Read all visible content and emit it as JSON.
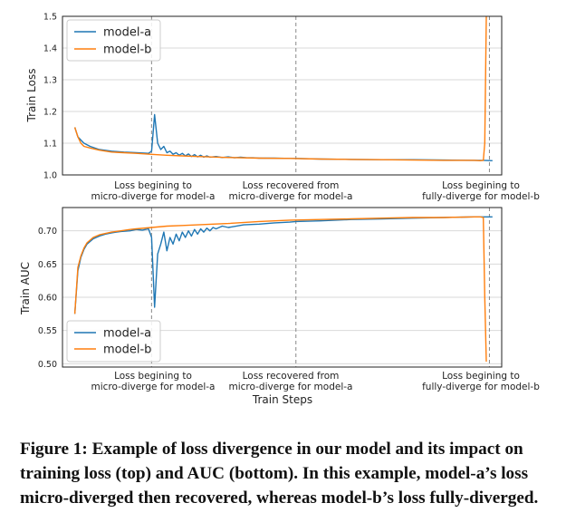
{
  "colors": {
    "model_a": "#1f77b4",
    "model_b": "#ff7f0e",
    "vline": "#888888",
    "grid": "#d9d9d9"
  },
  "annotations": [
    {
      "x": 25000,
      "lines": [
        "Loss begining to",
        "micro-diverge for model-a"
      ]
    },
    {
      "x": 72000,
      "lines": [
        "Loss recovered from",
        "micro-diverge for model-a"
      ]
    },
    {
      "x": 135000,
      "lines": [
        "Loss begining to",
        "fully-diverge for model-b"
      ]
    }
  ],
  "chart_data": [
    {
      "type": "line",
      "ylabel": "Train Loss",
      "xlabel": "",
      "ylim": [
        1.0,
        1.5
      ],
      "xlim": [
        -4000,
        139000
      ],
      "yticks": [
        "1.0",
        "1.1",
        "1.2",
        "1.3",
        "1.4",
        "1.5"
      ],
      "grid": true,
      "legend": "top-left",
      "series": [
        {
          "name": "model-a",
          "x": [
            0,
            1000,
            2000,
            3000,
            5000,
            8000,
            12000,
            16000,
            20000,
            24000,
            25000,
            26000,
            27000,
            28000,
            29000,
            30000,
            31000,
            32000,
            33000,
            34000,
            35000,
            36000,
            37000,
            38000,
            39000,
            40000,
            41000,
            42000,
            43000,
            44000,
            46000,
            48000,
            50000,
            52000,
            54000,
            56000,
            58000,
            60000,
            65000,
            70000,
            72000,
            80000,
            90000,
            100000,
            110000,
            120000,
            130000,
            133000,
            136000
          ],
          "y": [
            1.15,
            1.12,
            1.11,
            1.1,
            1.09,
            1.08,
            1.075,
            1.072,
            1.07,
            1.068,
            1.075,
            1.19,
            1.1,
            1.08,
            1.09,
            1.07,
            1.075,
            1.065,
            1.07,
            1.062,
            1.068,
            1.06,
            1.066,
            1.058,
            1.064,
            1.057,
            1.062,
            1.056,
            1.06,
            1.056,
            1.058,
            1.055,
            1.057,
            1.054,
            1.056,
            1.054,
            1.054,
            1.053,
            1.053,
            1.052,
            1.052,
            1.05,
            1.049,
            1.048,
            1.048,
            1.047,
            1.046,
            1.046,
            1.045
          ]
        },
        {
          "name": "model-b",
          "x": [
            0,
            1000,
            2000,
            3000,
            5000,
            8000,
            12000,
            16000,
            20000,
            25000,
            30000,
            35000,
            40000,
            50000,
            60000,
            70000,
            80000,
            90000,
            100000,
            110000,
            120000,
            130000,
            132000,
            133000,
            133500,
            134000
          ],
          "y": [
            1.15,
            1.12,
            1.1,
            1.09,
            1.085,
            1.078,
            1.072,
            1.07,
            1.068,
            1.065,
            1.062,
            1.06,
            1.058,
            1.055,
            1.053,
            1.052,
            1.05,
            1.049,
            1.048,
            1.047,
            1.046,
            1.046,
            1.045,
            1.046,
            1.1,
            1.5
          ]
        }
      ]
    },
    {
      "type": "line",
      "ylabel": "Train AUC",
      "xlabel": "Train Steps",
      "ylim": [
        0.495,
        0.735
      ],
      "xlim": [
        -4000,
        139000
      ],
      "yticks": [
        "0.50",
        "0.55",
        "0.60",
        "0.65",
        "0.70"
      ],
      "grid": true,
      "legend": "bottom-left",
      "series": [
        {
          "name": "model-a",
          "x": [
            0,
            1000,
            2000,
            3000,
            4000,
            6000,
            8000,
            10000,
            12000,
            15000,
            18000,
            20000,
            22000,
            24000,
            25000,
            26000,
            27000,
            28000,
            29000,
            30000,
            31000,
            32000,
            33000,
            34000,
            35000,
            36000,
            37000,
            38000,
            39000,
            40000,
            41000,
            42000,
            43000,
            44000,
            45000,
            46000,
            48000,
            50000,
            55000,
            60000,
            65000,
            70000,
            72000,
            80000,
            90000,
            100000,
            110000,
            120000,
            130000,
            136000
          ],
          "y": [
            0.575,
            0.64,
            0.66,
            0.672,
            0.68,
            0.688,
            0.692,
            0.695,
            0.697,
            0.699,
            0.7,
            0.702,
            0.701,
            0.703,
            0.69,
            0.585,
            0.665,
            0.68,
            0.698,
            0.67,
            0.69,
            0.68,
            0.695,
            0.685,
            0.698,
            0.69,
            0.7,
            0.692,
            0.702,
            0.695,
            0.703,
            0.698,
            0.704,
            0.7,
            0.705,
            0.703,
            0.707,
            0.705,
            0.709,
            0.71,
            0.712,
            0.713,
            0.714,
            0.715,
            0.717,
            0.718,
            0.719,
            0.72,
            0.721,
            0.721
          ]
        },
        {
          "name": "model-b",
          "x": [
            0,
            1000,
            2000,
            3000,
            4000,
            6000,
            8000,
            10000,
            12000,
            15000,
            18000,
            20000,
            25000,
            30000,
            35000,
            40000,
            45000,
            50000,
            60000,
            70000,
            80000,
            90000,
            100000,
            110000,
            120000,
            130000,
            132000,
            133000,
            133500,
            134000
          ],
          "y": [
            0.575,
            0.645,
            0.662,
            0.674,
            0.682,
            0.69,
            0.694,
            0.696,
            0.698,
            0.7,
            0.702,
            0.703,
            0.705,
            0.707,
            0.708,
            0.709,
            0.71,
            0.711,
            0.714,
            0.716,
            0.717,
            0.718,
            0.719,
            0.72,
            0.72,
            0.721,
            0.721,
            0.72,
            0.6,
            0.503
          ]
        }
      ]
    }
  ],
  "caption": "Figure 1: Example of loss divergence in our model and its impact on training loss (top) and AUC (bottom). In this example, model-a’s loss micro-diverged then recovered, whereas model-b’s loss fully-diverged."
}
